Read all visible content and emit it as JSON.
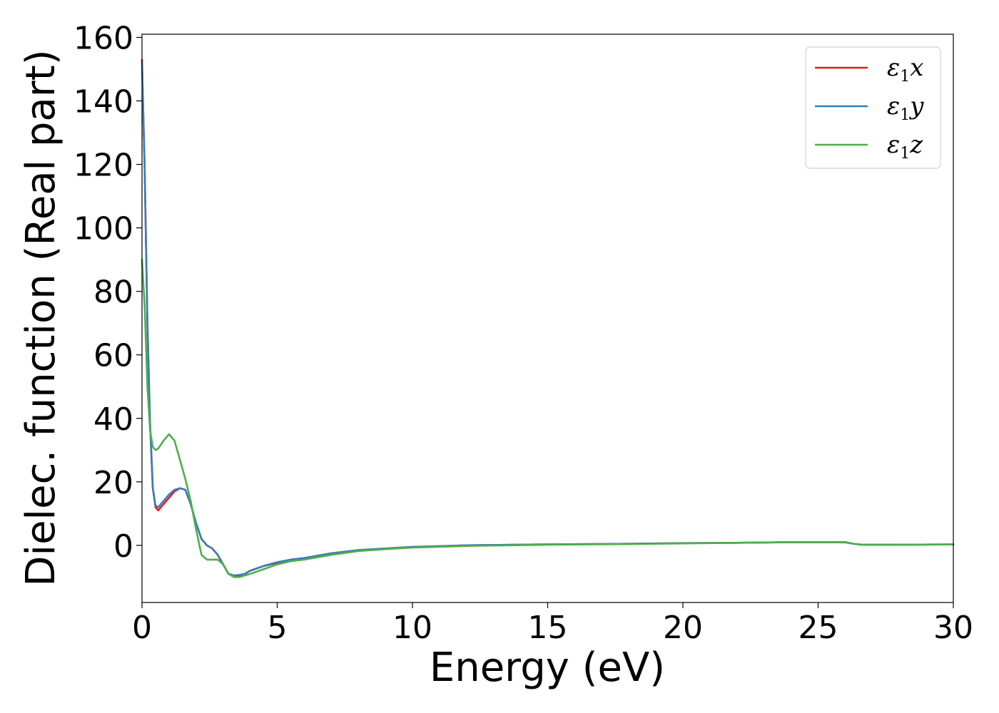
{
  "chart_data": {
    "type": "line",
    "xlabel": "Energy (eV)",
    "ylabel": "Dielec. function (Real part)",
    "xlim": [
      0,
      30
    ],
    "ylim": [
      -18,
      161
    ],
    "xticks": [
      0,
      5,
      10,
      15,
      20,
      25,
      30
    ],
    "yticks": [
      0,
      20,
      40,
      60,
      80,
      100,
      120,
      140,
      160
    ],
    "grid": false,
    "legend_position": "top-right",
    "series": [
      {
        "name": "ε1x",
        "legend_base": "ε",
        "legend_sub": "1",
        "legend_var": "x",
        "color": "#e41a1c",
        "x": [
          0.0,
          0.1,
          0.2,
          0.3,
          0.4,
          0.5,
          0.6,
          0.8,
          1.0,
          1.2,
          1.4,
          1.6,
          1.8,
          2.0,
          2.2,
          2.4,
          2.6,
          2.8,
          3.0,
          3.2,
          3.4,
          3.6,
          3.8,
          4.0,
          4.5,
          5.0,
          5.5,
          6.0,
          7.0,
          8.0,
          9.0,
          10.0,
          12.0,
          15.0,
          18.0,
          20.0,
          22.0,
          24.0,
          25.0,
          26.0,
          26.3,
          26.6,
          27.0,
          28.0,
          30.0
        ],
        "y": [
          153,
          118,
          70,
          38,
          18,
          12,
          11,
          13,
          15,
          17,
          18,
          17.5,
          13,
          7,
          2,
          0,
          -1,
          -3,
          -6,
          -9,
          -9.5,
          -9.5,
          -9,
          -8,
          -6.5,
          -5.5,
          -4.5,
          -4,
          -2.5,
          -1.5,
          -1,
          -0.5,
          0,
          0.3,
          0.5,
          0.7,
          0.8,
          1.0,
          1.0,
          1.0,
          0.5,
          0.2,
          0.2,
          0.2,
          0.3
        ]
      },
      {
        "name": "ε1y",
        "legend_base": "ε",
        "legend_sub": "1",
        "legend_var": "y",
        "color": "#377eb8",
        "x": [
          0.0,
          0.1,
          0.2,
          0.3,
          0.4,
          0.5,
          0.6,
          0.8,
          1.0,
          1.2,
          1.4,
          1.6,
          1.8,
          2.0,
          2.2,
          2.4,
          2.6,
          2.8,
          3.0,
          3.2,
          3.4,
          3.6,
          3.8,
          4.0,
          4.5,
          5.0,
          5.5,
          6.0,
          7.0,
          8.0,
          9.0,
          10.0,
          12.0,
          15.0,
          18.0,
          20.0,
          22.0,
          24.0,
          25.0,
          26.0,
          26.3,
          26.6,
          27.0,
          28.0,
          30.0
        ],
        "y": [
          152,
          118,
          70,
          38,
          18,
          12.5,
          12,
          14,
          16,
          17.5,
          18,
          17.5,
          13,
          7,
          2,
          0,
          -1,
          -3,
          -6,
          -9,
          -9.5,
          -9.3,
          -9,
          -8,
          -6.5,
          -5.3,
          -4.5,
          -4,
          -2.5,
          -1.5,
          -1,
          -0.5,
          0,
          0.3,
          0.5,
          0.7,
          0.8,
          1.0,
          1.0,
          1.0,
          0.5,
          0.2,
          0.2,
          0.2,
          0.3
        ]
      },
      {
        "name": "ε1z",
        "legend_base": "ε",
        "legend_sub": "1",
        "legend_var": "z",
        "color": "#4daf4a",
        "x": [
          0.0,
          0.1,
          0.2,
          0.3,
          0.4,
          0.5,
          0.6,
          0.8,
          1.0,
          1.2,
          1.4,
          1.6,
          1.8,
          2.0,
          2.2,
          2.4,
          2.6,
          2.8,
          3.0,
          3.2,
          3.4,
          3.6,
          3.8,
          4.0,
          4.5,
          5.0,
          5.5,
          6.0,
          7.0,
          8.0,
          9.0,
          10.0,
          12.0,
          15.0,
          18.0,
          20.0,
          22.0,
          24.0,
          25.0,
          26.0,
          26.3,
          26.6,
          27.0,
          28.0,
          30.0
        ],
        "y": [
          90,
          75,
          50,
          36,
          31,
          30,
          30.5,
          33,
          35,
          33,
          27,
          21,
          14,
          5,
          -3,
          -4.5,
          -4.5,
          -4.5,
          -6,
          -9,
          -10,
          -10,
          -9.5,
          -9,
          -7.5,
          -6,
          -5,
          -4.5,
          -3,
          -1.8,
          -1.2,
          -0.7,
          -0.2,
          0.2,
          0.4,
          0.6,
          0.8,
          1.0,
          1.0,
          0.9,
          0.5,
          0.2,
          0.2,
          0.2,
          0.3
        ]
      }
    ]
  }
}
